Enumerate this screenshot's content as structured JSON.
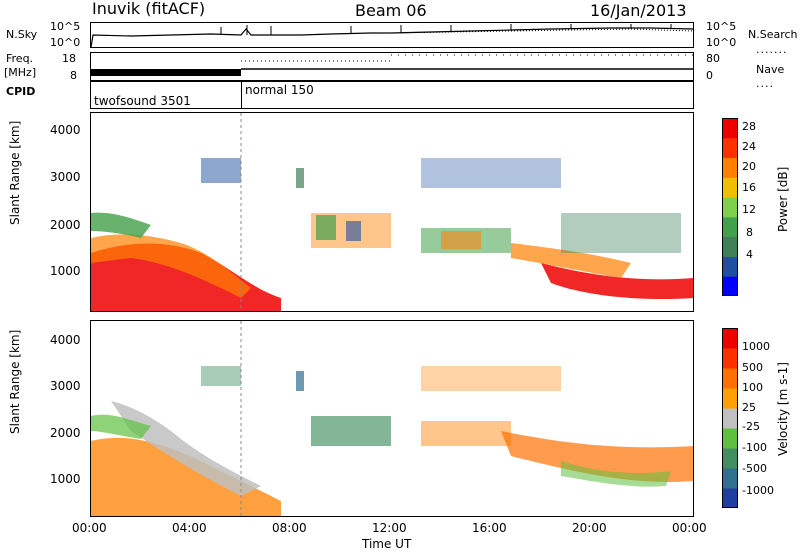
{
  "header": {
    "station": "Inuvik (fitACF)",
    "beam": "Beam 06",
    "date": "16/Jan/2013"
  },
  "side_labels": {
    "nsky": "N.Sky",
    "nsearch": "N.Search",
    "freq": "Freq.",
    "freq_unit": "[MHz]",
    "nave": "Nave",
    "cpid": "CPID"
  },
  "small_axes": {
    "nsky_ticks": [
      "10^5",
      "10^0"
    ],
    "nsearch_ticks": [
      "10^5",
      "10^0"
    ],
    "freq_ticks": [
      "18",
      "8"
    ],
    "nave_ticks": [
      "80",
      "0"
    ]
  },
  "cpid": {
    "mode1": "twofsound 3501",
    "mode2": "normal 150"
  },
  "chart_data": [
    {
      "type": "heatmap",
      "ylabel": "Slant Range [km]",
      "y_ticks": [
        "4000",
        "3000",
        "2000",
        "1000"
      ],
      "x_ticks": [
        "00:00",
        "04:00",
        "08:00",
        "12:00",
        "16:00",
        "20:00",
        "00:00"
      ],
      "xlabel": "Time UT",
      "colorbar_label": "Power [dB]",
      "colorbar_ticks": [
        "28",
        "24",
        "20",
        "16",
        "12",
        "8",
        "4"
      ],
      "colors": [
        "#0000ff",
        "#1e4fa0",
        "#3f7f5a",
        "#41a04a",
        "#7cd04a",
        "#f0c000",
        "#ff8000",
        "#ff3000",
        "#ee0000"
      ]
    },
    {
      "type": "heatmap",
      "ylabel": "Slant Range [km]",
      "y_ticks": [
        "4000",
        "3000",
        "2000",
        "1000"
      ],
      "x_ticks": [
        "00:00",
        "04:00",
        "08:00",
        "12:00",
        "16:00",
        "20:00",
        "00:00"
      ],
      "xlabel": "Time UT",
      "colorbar_label": "Velocity [m s-1]",
      "colorbar_ticks": [
        "1000",
        "500",
        "100",
        "25",
        "-25",
        "-100",
        "-500",
        "-1000"
      ],
      "colors": [
        "#1e3fa0",
        "#2f6f8f",
        "#3f8f5f",
        "#5fc03f",
        "#c0c0c0",
        "#ffa000",
        "#ff7000",
        "#ff3000",
        "#ee0000"
      ]
    }
  ]
}
